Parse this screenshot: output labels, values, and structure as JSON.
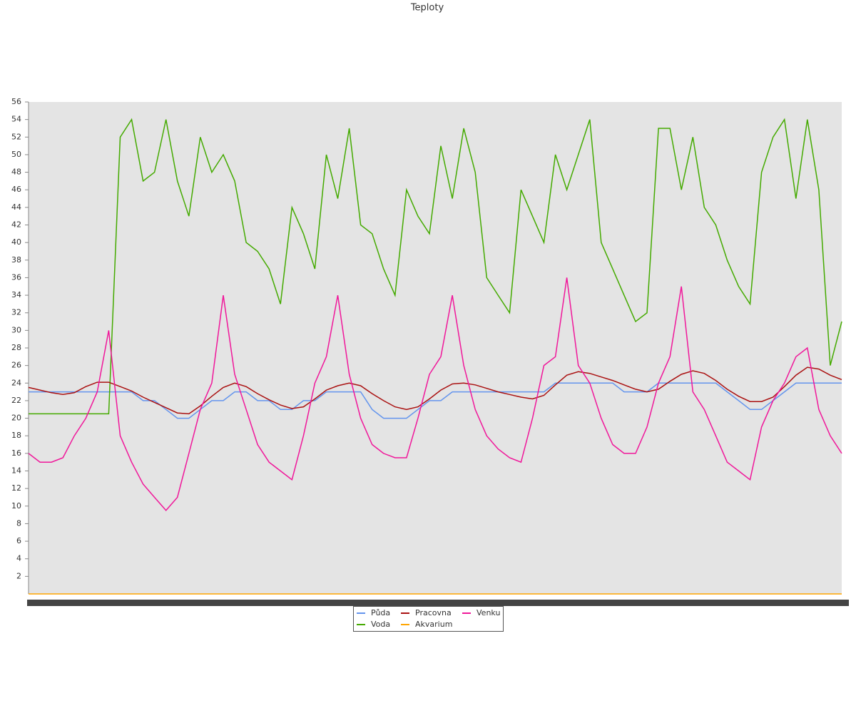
{
  "chart_data": {
    "type": "line",
    "title": "Teploty",
    "ylim": [
      0,
      56
    ],
    "yticks": [
      2,
      4,
      6,
      8,
      10,
      12,
      14,
      16,
      18,
      20,
      22,
      24,
      26,
      28,
      30,
      32,
      34,
      36,
      38,
      40,
      42,
      44,
      46,
      48,
      50,
      52,
      54,
      56
    ],
    "grid": false,
    "series": [
      {
        "name": "Půda",
        "color": "#6495ed",
        "values": [
          23,
          23,
          23,
          23,
          23,
          23,
          23,
          23,
          23,
          23,
          22,
          22,
          21,
          20,
          20,
          21,
          22,
          22,
          23,
          23,
          22,
          22,
          21,
          21,
          22,
          22,
          23,
          23,
          23,
          23,
          21,
          20,
          20,
          20,
          21,
          22,
          22,
          23,
          23,
          23,
          23,
          23,
          23,
          23,
          23,
          23,
          24,
          24,
          24,
          24,
          24,
          24,
          23,
          23,
          23,
          24,
          24,
          24,
          24,
          24,
          24,
          23,
          22,
          21,
          21,
          22,
          23,
          24,
          24,
          24,
          24,
          24
        ]
      },
      {
        "name": "Voda",
        "color": "#44aa00",
        "values": [
          20.5,
          20.5,
          20.5,
          20.5,
          20.5,
          20.5,
          20.5,
          20.5,
          52,
          54,
          47,
          48,
          54,
          47,
          43,
          52,
          48,
          50,
          47,
          40,
          39,
          37,
          33,
          44,
          41,
          37,
          50,
          45,
          53,
          42,
          41,
          37,
          34,
          46,
          43,
          41,
          51,
          45,
          53,
          48,
          36,
          34,
          32,
          46,
          43,
          40,
          50,
          46,
          50,
          54,
          40,
          37,
          34,
          31,
          32,
          53,
          53,
          46,
          52,
          44,
          42,
          38,
          35,
          33,
          48,
          52,
          54,
          45,
          54,
          46,
          26,
          31
        ]
      },
      {
        "name": "Pracovna",
        "color": "#aa1111",
        "values": [
          23.5,
          23.2,
          22.9,
          22.7,
          22.9,
          23.6,
          24.1,
          24.1,
          23.6,
          23.1,
          22.4,
          21.8,
          21.2,
          20.6,
          20.5,
          21.4,
          22.5,
          23.5,
          24,
          23.6,
          22.8,
          22.1,
          21.5,
          21.1,
          21.3,
          22.2,
          23.2,
          23.7,
          24,
          23.7,
          22.8,
          22,
          21.3,
          21,
          21.3,
          22.2,
          23.2,
          23.9,
          24,
          23.8,
          23.4,
          23,
          22.7,
          22.4,
          22.2,
          22.6,
          23.8,
          24.9,
          25.3,
          25.1,
          24.7,
          24.3,
          23.8,
          23.3,
          23,
          23.3,
          24.2,
          25,
          25.4,
          25.1,
          24.3,
          23.3,
          22.5,
          21.9,
          21.9,
          22.4,
          23.6,
          24.9,
          25.8,
          25.6,
          24.9,
          24.4
        ]
      },
      {
        "name": "Akvarium",
        "color": "#ffa500",
        "values": [
          0,
          0,
          0,
          0,
          0,
          0,
          0,
          0,
          0,
          0,
          0,
          0,
          0,
          0,
          0,
          0,
          0,
          0,
          0,
          0,
          0,
          0,
          0,
          0,
          0,
          0,
          0,
          0,
          0,
          0,
          0,
          0,
          0,
          0,
          0,
          0,
          0,
          0,
          0,
          0,
          0,
          0,
          0,
          0,
          0,
          0,
          0,
          0,
          0,
          0,
          0,
          0,
          0,
          0,
          0,
          0,
          0,
          0,
          0,
          0,
          0,
          0,
          0,
          0,
          0,
          0,
          0,
          0,
          0,
          0,
          0,
          0
        ]
      },
      {
        "name": "Venku",
        "color": "#f0179a",
        "values": [
          16,
          15,
          15,
          15.5,
          18,
          20,
          23,
          30,
          18,
          15,
          12.5,
          11,
          9.5,
          11,
          16,
          21,
          24,
          34,
          25,
          21,
          17,
          15,
          14,
          13,
          18,
          24,
          27,
          34,
          25,
          20,
          17,
          16,
          15.5,
          15.5,
          20,
          25,
          27,
          34,
          26,
          21,
          18,
          16.5,
          15.5,
          15,
          20,
          26,
          27,
          36,
          26,
          24,
          20,
          17,
          16,
          16,
          19,
          24,
          27,
          35,
          23,
          21,
          18,
          15,
          14,
          13,
          19,
          22,
          24,
          27,
          28,
          21,
          18,
          16
        ]
      }
    ]
  }
}
